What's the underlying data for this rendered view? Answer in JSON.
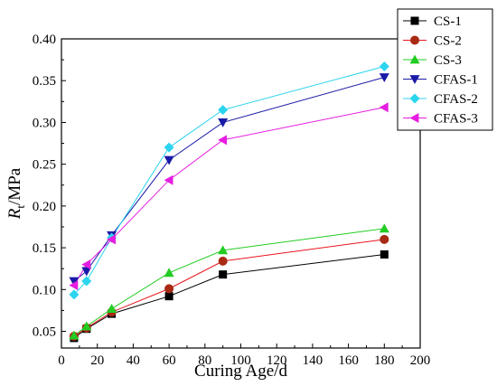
{
  "chart_data": {
    "type": "line",
    "xlabel": "Curing Age/d",
    "ylabel_main": "R",
    "ylabel_sub": "t",
    "ylabel_unit": "/MPa",
    "xlim": [
      0,
      200
    ],
    "ylim": [
      0.03,
      0.4
    ],
    "xticks": [
      0,
      20,
      40,
      60,
      80,
      100,
      120,
      140,
      160,
      180,
      200
    ],
    "yticks": [
      0.05,
      0.1,
      0.15,
      0.2,
      0.25,
      0.3,
      0.35,
      0.4
    ],
    "ytick_labels": [
      "0.05",
      "0.10",
      "0.15",
      "0.20",
      "0.25",
      "0.30",
      "0.35",
      "0.40"
    ],
    "x": [
      7,
      14,
      28,
      60,
      90,
      180
    ],
    "grid": false,
    "legend_position": "top-right",
    "series": [
      {
        "name": "CS-1",
        "color": "#000000",
        "marker": "square",
        "values": [
          0.042,
          0.053,
          0.071,
          0.092,
          0.118,
          0.142
        ]
      },
      {
        "name": "CS-2",
        "color": "#e8141c",
        "marker": "circle",
        "values": [
          0.044,
          0.054,
          0.073,
          0.101,
          0.134,
          0.16
        ]
      },
      {
        "name": "CS-3",
        "color": "#22cc22",
        "marker": "triangle-up",
        "values": [
          0.045,
          0.056,
          0.077,
          0.12,
          0.147,
          0.173
        ]
      },
      {
        "name": "CFAS-1",
        "color": "#1a1aa8",
        "marker": "triangle-down",
        "values": [
          0.11,
          0.122,
          0.165,
          0.255,
          0.3,
          0.354
        ]
      },
      {
        "name": "CFAS-2",
        "color": "#2cd4ee",
        "marker": "diamond",
        "values": [
          0.094,
          0.11,
          0.162,
          0.27,
          0.315,
          0.367
        ]
      },
      {
        "name": "CFAS-3",
        "color": "#e51ee0",
        "marker": "triangle-left",
        "values": [
          0.105,
          0.13,
          0.16,
          0.231,
          0.279,
          0.318
        ]
      }
    ]
  }
}
